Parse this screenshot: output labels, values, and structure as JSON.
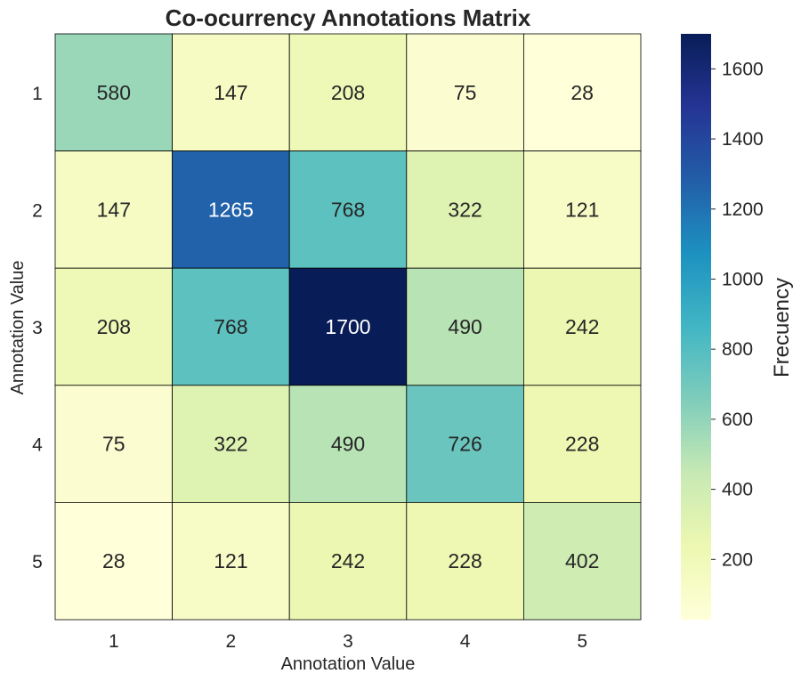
{
  "chart_data": {
    "type": "heatmap",
    "title": "Co-ocurrency Annotations Matrix",
    "xlabel": "Annotation Value",
    "ylabel": "Annotation Value",
    "x_categories": [
      "1",
      "2",
      "3",
      "4",
      "5"
    ],
    "y_categories": [
      "1",
      "2",
      "3",
      "4",
      "5"
    ],
    "values": [
      [
        580,
        147,
        208,
        75,
        28
      ],
      [
        147,
        1265,
        768,
        322,
        121
      ],
      [
        208,
        768,
        1700,
        490,
        242
      ],
      [
        75,
        322,
        490,
        726,
        228
      ],
      [
        28,
        121,
        242,
        228,
        402
      ]
    ],
    "colorbar": {
      "label": "Frecuency",
      "range": [
        28,
        1700
      ],
      "ticks": [
        200,
        400,
        600,
        800,
        1000,
        1200,
        1400,
        1600
      ],
      "colormap": "YlGnBu",
      "stops": [
        "#ffffd9",
        "#edf8b1",
        "#c7e9b4",
        "#7fcdbb",
        "#41b6c4",
        "#1d91c0",
        "#225ea8",
        "#253494",
        "#081d58"
      ]
    }
  }
}
